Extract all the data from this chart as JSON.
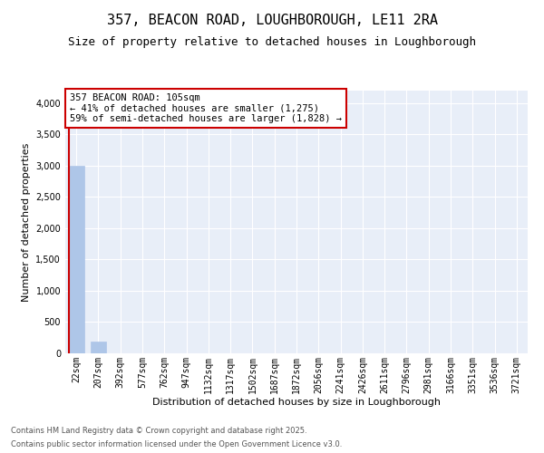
{
  "title1": "357, BEACON ROAD, LOUGHBOROUGH, LE11 2RA",
  "title2": "Size of property relative to detached houses in Loughborough",
  "xlabel": "Distribution of detached houses by size in Loughborough",
  "ylabel": "Number of detached properties",
  "bar_color": "#aec6e8",
  "highlight_color": "#cc0000",
  "annotation_box_color": "#cc0000",
  "background_color": "#e8eef8",
  "categories": [
    "22sqm",
    "207sqm",
    "392sqm",
    "577sqm",
    "762sqm",
    "947sqm",
    "1132sqm",
    "1317sqm",
    "1502sqm",
    "1687sqm",
    "1872sqm",
    "2056sqm",
    "2241sqm",
    "2426sqm",
    "2611sqm",
    "2796sqm",
    "2981sqm",
    "3166sqm",
    "3351sqm",
    "3536sqm",
    "3721sqm"
  ],
  "values": [
    3000,
    185,
    0,
    0,
    0,
    0,
    0,
    0,
    0,
    0,
    0,
    0,
    0,
    0,
    0,
    0,
    0,
    0,
    0,
    0,
    0
  ],
  "annotation_text": "357 BEACON ROAD: 105sqm\n← 41% of detached houses are smaller (1,275)\n59% of semi-detached houses are larger (1,828) →",
  "ylim": [
    0,
    4200
  ],
  "yticks": [
    0,
    500,
    1000,
    1500,
    2000,
    2500,
    3000,
    3500,
    4000
  ],
  "footnote1": "Contains HM Land Registry data © Crown copyright and database right 2025.",
  "footnote2": "Contains public sector information licensed under the Open Government Licence v3.0.",
  "title_fontsize": 11,
  "subtitle_fontsize": 9,
  "tick_fontsize": 7,
  "ylabel_fontsize": 8,
  "xlabel_fontsize": 8,
  "footnote_fontsize": 6,
  "annotation_fontsize": 7.5
}
